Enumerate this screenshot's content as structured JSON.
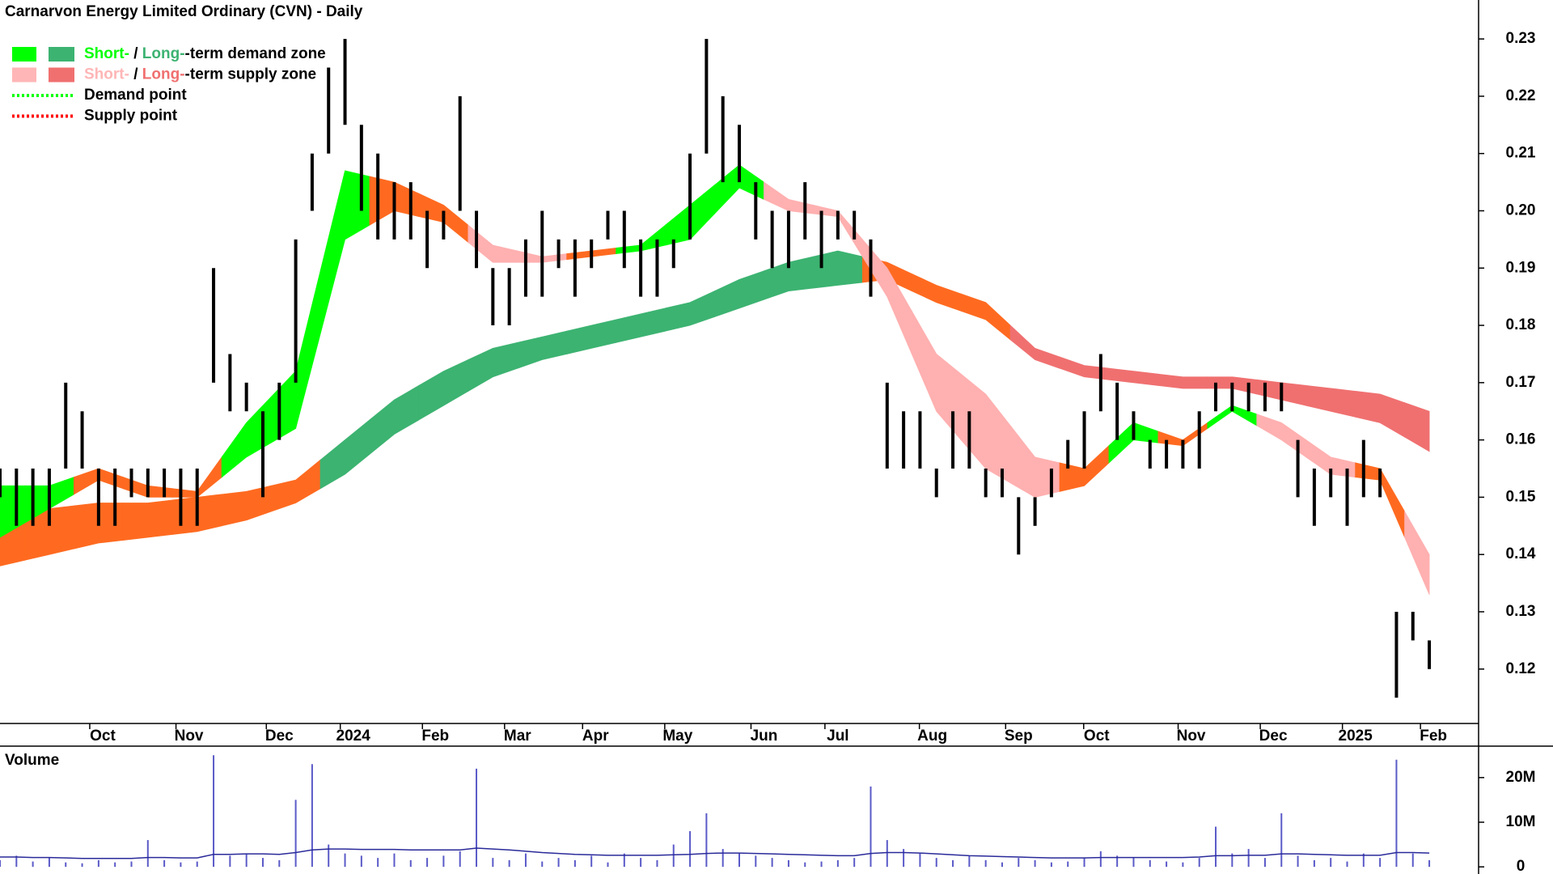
{
  "chart_data": [
    {
      "type": "ohlc",
      "title": "Carnarvon Energy Limited Ordinary (CVN) - Daily",
      "color": "#000000",
      "x": [
        0,
        4,
        8,
        12,
        16,
        20,
        24,
        28,
        32,
        36,
        40,
        44,
        48,
        52,
        56,
        60,
        64,
        68,
        72,
        76,
        80,
        84,
        88,
        92,
        96,
        100,
        104,
        108,
        112,
        116,
        120,
        124,
        128,
        132,
        136,
        140,
        144,
        148,
        152,
        156,
        160,
        164,
        168,
        172,
        176,
        180,
        184,
        188,
        192,
        196,
        200,
        204,
        208,
        212,
        216,
        220,
        224,
        228,
        232,
        236,
        240,
        244,
        248,
        252,
        256,
        260,
        264,
        268,
        272,
        276,
        280,
        284,
        288,
        292,
        296,
        300,
        304,
        308,
        312,
        316,
        320,
        324,
        328,
        332,
        336,
        340,
        344,
        348
      ],
      "high": [
        0.155,
        0.155,
        0.155,
        0.155,
        0.17,
        0.165,
        0.155,
        0.155,
        0.155,
        0.155,
        0.155,
        0.155,
        0.155,
        0.19,
        0.175,
        0.17,
        0.165,
        0.17,
        0.195,
        0.21,
        0.225,
        0.23,
        0.215,
        0.21,
        0.205,
        0.205,
        0.2,
        0.2,
        0.22,
        0.2,
        0.19,
        0.19,
        0.195,
        0.2,
        0.195,
        0.195,
        0.195,
        0.2,
        0.2,
        0.195,
        0.195,
        0.195,
        0.21,
        0.23,
        0.22,
        0.215,
        0.205,
        0.2,
        0.2,
        0.205,
        0.2,
        0.2,
        0.2,
        0.195,
        0.17,
        0.165,
        0.165,
        0.155,
        0.165,
        0.165,
        0.155,
        0.155,
        0.15,
        0.15,
        0.155,
        0.16,
        0.165,
        0.175,
        0.17,
        0.165,
        0.16,
        0.16,
        0.16,
        0.165,
        0.17,
        0.17,
        0.17,
        0.17,
        0.17,
        0.16,
        0.155,
        0.155,
        0.155,
        0.16,
        0.155,
        0.13,
        0.13,
        0.125
      ],
      "low": [
        0.15,
        0.145,
        0.145,
        0.145,
        0.155,
        0.155,
        0.145,
        0.145,
        0.15,
        0.15,
        0.15,
        0.145,
        0.145,
        0.17,
        0.165,
        0.165,
        0.15,
        0.16,
        0.17,
        0.2,
        0.21,
        0.215,
        0.2,
        0.195,
        0.195,
        0.195,
        0.19,
        0.195,
        0.2,
        0.19,
        0.18,
        0.18,
        0.185,
        0.185,
        0.19,
        0.185,
        0.19,
        0.195,
        0.19,
        0.185,
        0.185,
        0.19,
        0.195,
        0.21,
        0.205,
        0.205,
        0.195,
        0.19,
        0.19,
        0.195,
        0.19,
        0.195,
        0.195,
        0.185,
        0.155,
        0.155,
        0.155,
        0.15,
        0.155,
        0.155,
        0.15,
        0.15,
        0.14,
        0.145,
        0.15,
        0.155,
        0.155,
        0.165,
        0.16,
        0.16,
        0.155,
        0.155,
        0.155,
        0.155,
        0.165,
        0.165,
        0.165,
        0.165,
        0.165,
        0.15,
        0.145,
        0.15,
        0.145,
        0.15,
        0.15,
        0.115,
        0.125,
        0.12
      ],
      "xlim": [
        0,
        360
      ],
      "ylim": [
        0.1105,
        0.2368
      ],
      "xticks": [
        {
          "value": 25,
          "label": "Oct"
        },
        {
          "value": 46,
          "label": "Nov"
        },
        {
          "value": 68,
          "label": "Dec"
        },
        {
          "value": 86,
          "label": "2024"
        },
        {
          "value": 106,
          "label": "Feb"
        },
        {
          "value": 126,
          "label": "Mar"
        },
        {
          "value": 145,
          "label": "Apr"
        },
        {
          "value": 165,
          "label": "May"
        },
        {
          "value": 186,
          "label": "Jun"
        },
        {
          "value": 204,
          "label": "Jul"
        },
        {
          "value": 227,
          "label": "Aug"
        },
        {
          "value": 248,
          "label": "Sep"
        },
        {
          "value": 267,
          "label": "Oct"
        },
        {
          "value": 290,
          "label": "Nov"
        },
        {
          "value": 310,
          "label": "Dec"
        },
        {
          "value": 330,
          "label": "2025"
        },
        {
          "value": 349,
          "label": "Feb"
        }
      ],
      "yticks": [
        0.12,
        0.13,
        0.14,
        0.15,
        0.16,
        0.17,
        0.18,
        0.19,
        {
          "value": 0.2,
          "label": "0.20"
        },
        0.21,
        0.22,
        0.23
      ],
      "long_term_zone": {
        "x": [
          0,
          12,
          24,
          36,
          48,
          60,
          72,
          84,
          96,
          108,
          120,
          132,
          144,
          156,
          168,
          180,
          192,
          204,
          216,
          228,
          240,
          252,
          264,
          276,
          288,
          300,
          312,
          324,
          336,
          348
        ],
        "upper": [
          0.148,
          0.148,
          0.149,
          0.149,
          0.15,
          0.151,
          0.153,
          0.16,
          0.167,
          0.172,
          0.176,
          0.178,
          0.18,
          0.182,
          0.184,
          0.188,
          0.191,
          0.193,
          0.191,
          0.187,
          0.184,
          0.176,
          0.173,
          0.172,
          0.171,
          0.171,
          0.17,
          0.169,
          0.168,
          0.165
        ],
        "lower": [
          0.138,
          0.14,
          0.142,
          0.143,
          0.144,
          0.146,
          0.149,
          0.154,
          0.161,
          0.166,
          0.171,
          0.174,
          0.176,
          0.178,
          0.18,
          0.183,
          0.186,
          0.187,
          0.188,
          0.184,
          0.181,
          0.174,
          0.171,
          0.17,
          0.169,
          0.169,
          0.167,
          0.165,
          0.163,
          0.158
        ],
        "colors": [
          "#ff6a20",
          "#ff6a20",
          "#ff6a20",
          "#ff6a20",
          "#ff6a20",
          "#ff6a20",
          "#ff6a20",
          "#3cb371",
          "#3cb371",
          "#3cb371",
          "#3cb371",
          "#3cb371",
          "#3cb371",
          "#3cb371",
          "#3cb371",
          "#3cb371",
          "#3cb371",
          "#3cb371",
          "#ff6a20",
          "#ff6a20",
          "#ff6a20",
          "#f07070",
          "#f07070",
          "#f07070",
          "#f07070",
          "#f07070",
          "#f07070",
          "#f07070",
          "#f07070",
          "#f07070"
        ]
      },
      "short_term_zone": {
        "x": [
          0,
          12,
          24,
          36,
          48,
          60,
          72,
          84,
          96,
          108,
          120,
          132,
          144,
          156,
          168,
          180,
          192,
          204,
          216,
          228,
          240,
          252,
          264,
          276,
          288,
          300,
          312,
          324,
          336,
          348
        ],
        "upper": [
          0.152,
          0.152,
          0.155,
          0.152,
          0.151,
          0.163,
          0.172,
          0.207,
          0.205,
          0.201,
          0.194,
          0.192,
          0.193,
          0.194,
          0.201,
          0.208,
          0.202,
          0.2,
          0.19,
          0.175,
          0.168,
          0.157,
          0.155,
          0.163,
          0.16,
          0.166,
          0.163,
          0.157,
          0.155,
          0.14
        ],
        "lower": [
          0.143,
          0.148,
          0.153,
          0.15,
          0.15,
          0.157,
          0.162,
          0.195,
          0.2,
          0.198,
          0.191,
          0.191,
          0.192,
          0.193,
          0.195,
          0.204,
          0.2,
          0.199,
          0.185,
          0.165,
          0.155,
          0.15,
          0.152,
          0.16,
          0.159,
          0.165,
          0.16,
          0.154,
          0.153,
          0.133
        ],
        "colors": [
          "#00ff00",
          "#00ff00",
          "#ff6a20",
          "#ff6a20",
          "#ff6a20",
          "#00ff00",
          "#00ff00",
          "#00ff00",
          "#ff6a20",
          "#ff6a20",
          "#ffb0b0",
          "#ffb0b0",
          "#ff6a20",
          "#00ff00",
          "#00ff00",
          "#00ff00",
          "#ffb0b0",
          "#ffb0b0",
          "#ffb0b0",
          "#ffb0b0",
          "#ffb0b0",
          "#ffb0b0",
          "#ff6a20",
          "#00ff00",
          "#ff6a20",
          "#00ff00",
          "#ffb0b0",
          "#ffb0b0",
          "#ff6a20",
          "#ffb0b0"
        ]
      },
      "legend": [
        {
          "parts": [
            "Short-",
            " / ",
            "Long-",
            "-term demand zone"
          ],
          "colors": [
            "#00ff00",
            "#3cb371"
          ]
        },
        {
          "parts": [
            "Short-",
            " / ",
            "Long-",
            "-term supply zone"
          ],
          "colors": [
            "#ffb6b6",
            "#f07070"
          ]
        },
        {
          "label": "Demand point",
          "line_color": "#00ff00"
        },
        {
          "label": "Supply point",
          "line_color": "#ff0000"
        }
      ]
    },
    {
      "type": "bar",
      "title": "Volume",
      "title_color": "#4b2a8c",
      "color": "#5a5ac8",
      "values": [
        1500000,
        2500000,
        1200000,
        2000000,
        1000000,
        800000,
        1500000,
        1000000,
        1200000,
        6000000,
        1500000,
        1000000,
        1200000,
        25000000,
        2500000,
        3000000,
        2000000,
        1500000,
        15000000,
        23000000,
        5000000,
        3000000,
        2500000,
        2000000,
        3000000,
        1500000,
        2000000,
        2500000,
        3500000,
        22000000,
        2000000,
        1500000,
        3000000,
        1200000,
        2000000,
        1500000,
        2500000,
        1000000,
        3000000,
        2000000,
        1500000,
        5000000,
        8000000,
        12000000,
        4000000,
        3000000,
        2500000,
        2000000,
        1500000,
        1000000,
        1200000,
        1500000,
        2000000,
        18000000,
        6000000,
        4000000,
        3000000,
        2000000,
        1500000,
        2500000,
        1500000,
        1000000,
        2000000,
        1500000,
        1000000,
        1200000,
        2000000,
        3500000,
        2500000,
        2000000,
        1500000,
        1200000,
        1000000,
        2000000,
        9000000,
        3000000,
        4000000,
        2000000,
        12000000,
        2500000,
        1500000,
        2000000,
        1200000,
        3000000,
        2000000,
        24000000,
        3000000,
        1500000
      ],
      "average": {
        "color": "#2a2a9a",
        "values": [
          2200000,
          2200000,
          2100000,
          2100000,
          2000000,
          1900000,
          1900000,
          1900000,
          1900000,
          2100000,
          2100000,
          2000000,
          2000000,
          2800000,
          2800000,
          2900000,
          2900000,
          2800000,
          3200000,
          3800000,
          4000000,
          4000000,
          3900000,
          3900000,
          3900000,
          3800000,
          3800000,
          3800000,
          3800000,
          4200000,
          4000000,
          3800000,
          3500000,
          3200000,
          3000000,
          2800000,
          2700000,
          2600000,
          2600000,
          2600000,
          2600000,
          2700000,
          2800000,
          3000000,
          3100000,
          3100000,
          3000000,
          2900000,
          2800000,
          2700000,
          2600000,
          2500000,
          2500000,
          3000000,
          3200000,
          3200000,
          3100000,
          2900000,
          2700000,
          2500000,
          2400000,
          2300000,
          2200000,
          2100000,
          2000000,
          2000000,
          2000000,
          2100000,
          2100000,
          2100000,
          2100000,
          2100000,
          2100000,
          2200000,
          2500000,
          2500000,
          2600000,
          2600000,
          2900000,
          2900000,
          2800000,
          2700000,
          2600000,
          2600000,
          2600000,
          3200000,
          3200000,
          3100000
        ]
      },
      "ylim": [
        -1600000,
        26500000
      ],
      "yticks": [
        0,
        {
          "value": 10000000,
          "label": "10M"
        },
        {
          "value": 20000000,
          "label": "20M"
        }
      ]
    }
  ]
}
